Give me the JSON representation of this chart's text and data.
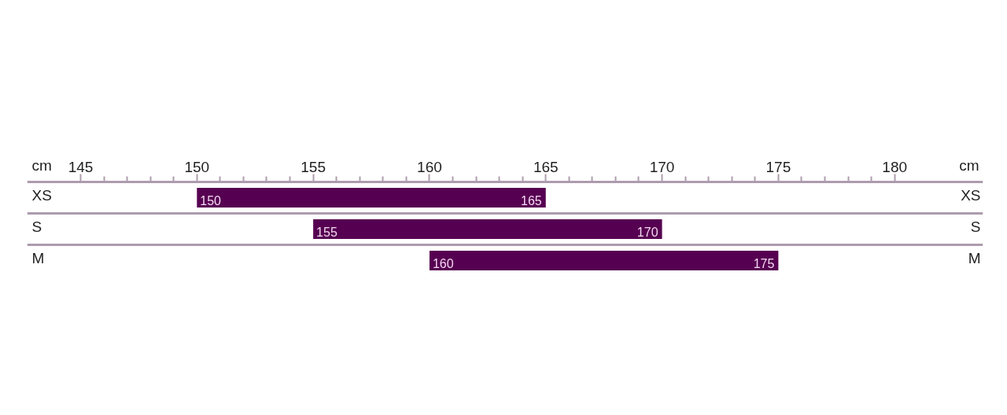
{
  "chart_data": {
    "type": "bar",
    "orientation": "horizontal",
    "categories": [
      "XS",
      "S",
      "M"
    ],
    "base": [
      150,
      155,
      160
    ],
    "values": [
      15,
      15,
      15
    ],
    "color": "#560051",
    "xlabel": "cm",
    "xlim": [
      142.7,
      183.8
    ],
    "xticks": [
      145,
      {
        "value": 146,
        "label": null
      },
      {
        "value": 147,
        "label": null
      },
      {
        "value": 148,
        "label": null
      },
      {
        "value": 149,
        "label": null
      },
      150,
      {
        "value": 151,
        "label": null
      },
      {
        "value": 152,
        "label": null
      },
      {
        "value": 153,
        "label": null
      },
      {
        "value": 154,
        "label": null
      },
      155,
      {
        "value": 156,
        "label": null
      },
      {
        "value": 157,
        "label": null
      },
      {
        "value": 158,
        "label": null
      },
      {
        "value": 159,
        "label": null
      },
      160,
      {
        "value": 161,
        "label": null
      },
      {
        "value": 162,
        "label": null
      },
      {
        "value": 163,
        "label": null
      },
      {
        "value": 164,
        "label": null
      },
      165,
      {
        "value": 166,
        "label": null
      },
      {
        "value": 167,
        "label": null
      },
      {
        "value": 168,
        "label": null
      },
      {
        "value": 169,
        "label": null
      },
      170,
      {
        "value": 171,
        "label": null
      },
      {
        "value": 172,
        "label": null
      },
      {
        "value": 173,
        "label": null
      },
      {
        "value": 174,
        "label": null
      },
      175,
      {
        "value": 176,
        "label": null
      },
      {
        "value": 177,
        "label": null
      },
      {
        "value": 178,
        "label": null
      },
      {
        "value": 179,
        "label": null
      },
      180
    ],
    "grid": "y",
    "annotations": [
      {
        "text": "150",
        "x": 150,
        "y": "XS"
      },
      {
        "text": "165",
        "x": 165,
        "y": "XS"
      },
      {
        "text": "155",
        "x": 155,
        "y": "S"
      },
      {
        "text": "170",
        "x": 170,
        "y": "S"
      },
      {
        "text": "160",
        "x": 160,
        "y": "M"
      },
      {
        "text": "175",
        "x": 175,
        "y": "M"
      }
    ]
  }
}
